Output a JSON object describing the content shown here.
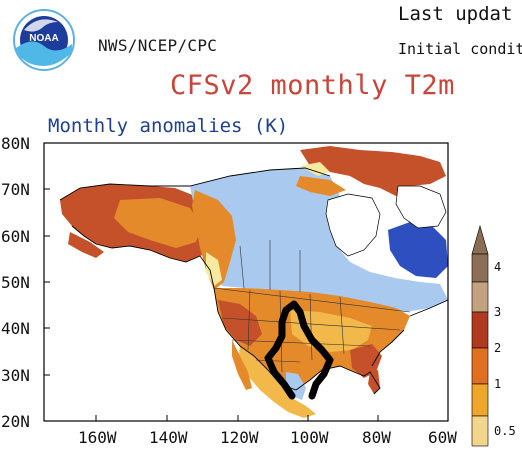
{
  "header": {
    "agency": "NWS/NCEP/CPC",
    "last_updated": "Last updat",
    "initial_conditions": "Initial conditi",
    "title": "CFSv2 monthly T2m",
    "subtitle": "Monthly anomalies (K)"
  },
  "map": {
    "lat_labels": [
      "80N",
      "70N",
      "60N",
      "50N",
      "40N",
      "30N",
      "20N"
    ],
    "lon_labels": [
      "160W",
      "140W",
      "120W",
      "100W",
      "80W",
      "60W"
    ],
    "colors": {
      "ocean": "#ffffff",
      "land_ocean_border": "#000000",
      "cool": "#a9c9ee",
      "neutral_land": "#f6e9a0",
      "warm_1": "#f2b84a",
      "warm_2": "#e48a2a",
      "warm_3": "#c5512a",
      "warm_4": "#a8361f",
      "cold_deep": "#2d4fbf",
      "outline": "#000000"
    },
    "annotation": "hand-drawn-outline"
  },
  "colorbar": {
    "labels": [
      "4",
      "3",
      "2",
      "1",
      "0.5"
    ],
    "colors": [
      "#8b6e55",
      "#c4a27f",
      "#b03a1f",
      "#e06f1f",
      "#f0a62a",
      "#f3d58b"
    ]
  }
}
